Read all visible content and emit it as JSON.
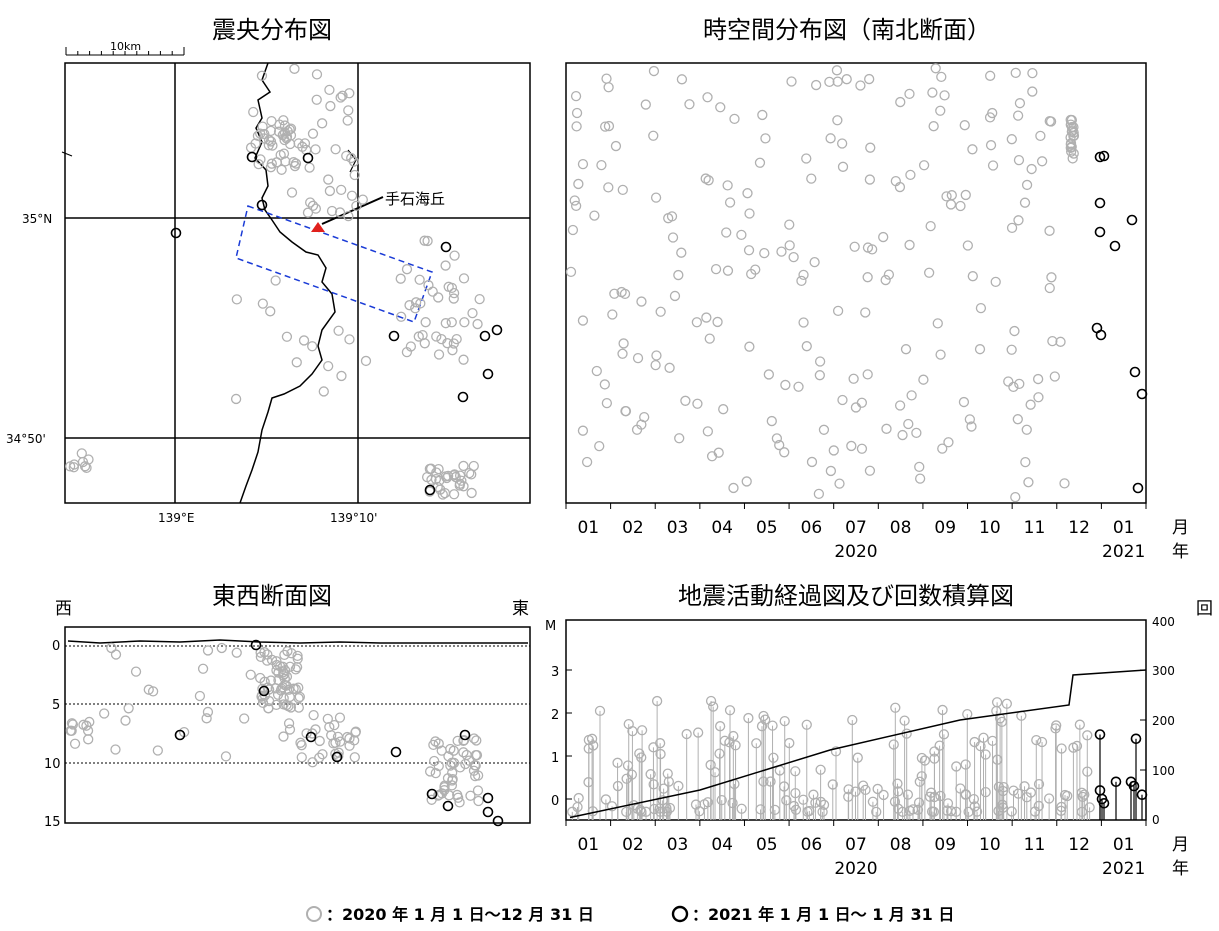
{
  "titles": {
    "epicenter_map": "震央分布図",
    "spacetime": "時空間分布図（南北断面）",
    "ew_section": "東西断面図",
    "activity": "地震活動経過図及び回数積算図"
  },
  "map": {
    "scale_label": "10km",
    "lat_labels": [
      "35°N",
      "34°50'"
    ],
    "lon_labels": [
      "139°E",
      "139°10'"
    ],
    "annotation": "手石海丘",
    "box_color": "#1a3bd6",
    "marker_color": "#e0201c"
  },
  "time_axis": {
    "months": [
      "01",
      "02",
      "03",
      "04",
      "05",
      "06",
      "07",
      "08",
      "09",
      "10",
      "11",
      "12",
      "01"
    ],
    "year_2020": "2020",
    "year_2021": "2021",
    "month_unit": "月",
    "year_unit": "年"
  },
  "ew_section": {
    "west": "西",
    "east": "東",
    "depth_ticks": [
      "0",
      "5",
      "10",
      "15"
    ]
  },
  "activity": {
    "m_label": "M",
    "m_ticks": [
      "0",
      "1",
      "2",
      "3"
    ],
    "count_label": "回",
    "count_ticks": [
      "0",
      "100",
      "200",
      "300",
      "400"
    ]
  },
  "legend": {
    "gray_text": "：2020 年 1 月 1 日～12 月 31 日",
    "black_text": "：2021 年 1 月 1 日～ 1 月 31 日",
    "gray_color": "#b0b0b0",
    "black_color": "#000000"
  },
  "chart_data": [
    {
      "type": "scatter",
      "title": "震央分布図",
      "note": "epicenter map, gray=2020, black=2021-01"
    },
    {
      "type": "scatter",
      "title": "時空間分布図（南北断面）"
    },
    {
      "type": "scatter",
      "title": "東西断面図"
    },
    {
      "type": "line",
      "title": "地震活動経過図及び回数積算図",
      "ylim_left": [
        0,
        3.5
      ],
      "ylim_right": [
        0,
        400
      ],
      "cumulative_count": {
        "x": [
          "2020-01",
          "2020-04",
          "2020-07",
          "2020-10",
          "2020-12-01",
          "2020-12-05",
          "2021-01-31"
        ],
        "y": [
          5,
          60,
          140,
          200,
          230,
          290,
          300
        ]
      }
    }
  ]
}
